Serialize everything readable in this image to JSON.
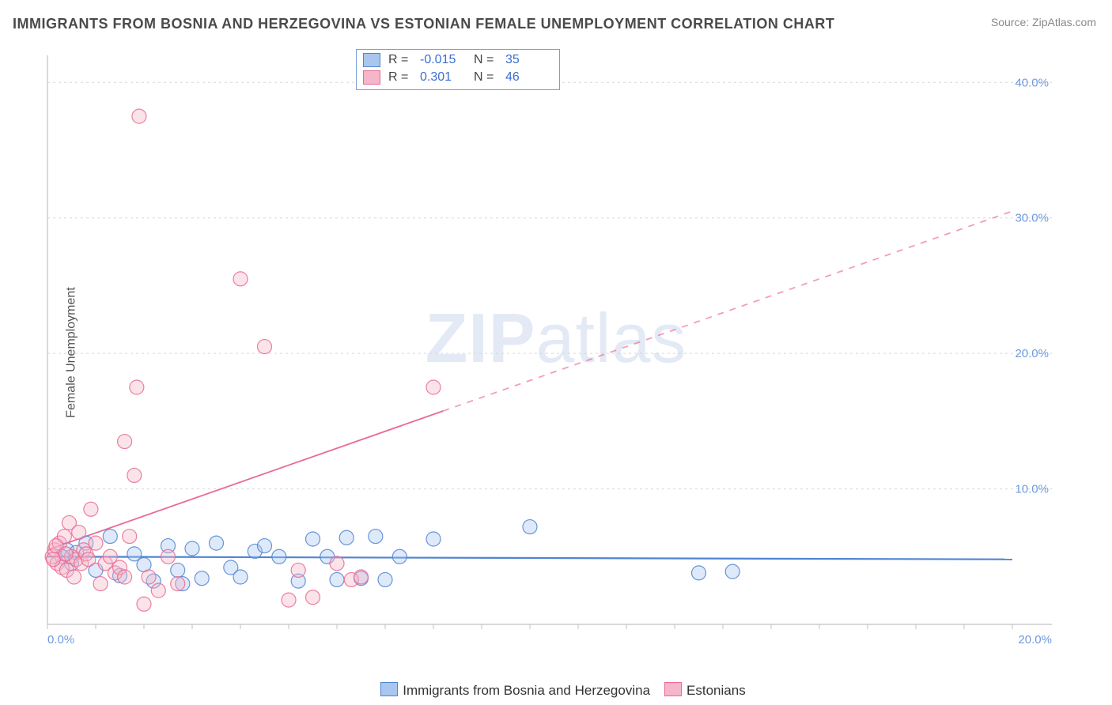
{
  "title": "IMMIGRANTS FROM BOSNIA AND HERZEGOVINA VS ESTONIAN FEMALE UNEMPLOYMENT CORRELATION CHART",
  "source": "Source: ZipAtlas.com",
  "ylabel": "Female Unemployment",
  "watermark_bold": "ZIP",
  "watermark_rest": "atlas",
  "chart": {
    "type": "scatter",
    "xlim": [
      0,
      20
    ],
    "ylim": [
      0,
      42
    ],
    "x_ticks": [
      0,
      20
    ],
    "x_tick_labels": [
      "0.0%",
      "20.0%"
    ],
    "y_ticks": [
      10,
      20,
      30,
      40
    ],
    "y_tick_labels": [
      "10.0%",
      "20.0%",
      "30.0%",
      "40.0%"
    ],
    "grid_color": "#d7d7d7",
    "axis_color": "#c2c2c2",
    "tick_label_color": "#6e9ae0",
    "tick_label_fontsize": 15,
    "marker_radius": 9,
    "marker_opacity": 0.38,
    "marker_stroke_opacity": 0.85,
    "series": [
      {
        "name": "Immigrants from Bosnia and Herzegovina",
        "color_fill": "#a9c6ee",
        "color_stroke": "#4f84d3",
        "R": "-0.015",
        "N": "35",
        "trend": {
          "y_at_x0": 5.0,
          "y_at_x20": 4.8,
          "dash": false,
          "width": 2.2
        },
        "points": [
          [
            0.4,
            5.5
          ],
          [
            0.5,
            4.5
          ],
          [
            0.8,
            6.0
          ],
          [
            1.0,
            4.0
          ],
          [
            1.3,
            6.5
          ],
          [
            1.5,
            3.6
          ],
          [
            1.8,
            5.2
          ],
          [
            2.0,
            4.4
          ],
          [
            2.2,
            3.2
          ],
          [
            2.5,
            5.8
          ],
          [
            2.7,
            4.0
          ],
          [
            2.8,
            3.0
          ],
          [
            3.0,
            5.6
          ],
          [
            3.2,
            3.4
          ],
          [
            3.5,
            6.0
          ],
          [
            3.8,
            4.2
          ],
          [
            4.0,
            3.5
          ],
          [
            4.3,
            5.4
          ],
          [
            4.5,
            5.8
          ],
          [
            4.8,
            5.0
          ],
          [
            5.2,
            3.2
          ],
          [
            5.5,
            6.3
          ],
          [
            5.8,
            5.0
          ],
          [
            6.0,
            3.3
          ],
          [
            6.2,
            6.4
          ],
          [
            6.5,
            3.4
          ],
          [
            6.8,
            6.5
          ],
          [
            7.0,
            3.3
          ],
          [
            7.3,
            5.0
          ],
          [
            8.0,
            6.3
          ],
          [
            10.0,
            7.2
          ],
          [
            13.5,
            3.8
          ],
          [
            14.2,
            3.9
          ],
          [
            0.3,
            5.0
          ],
          [
            0.6,
            5.3
          ]
        ]
      },
      {
        "name": "Estonians",
        "color_fill": "#f4b6c8",
        "color_stroke": "#e96a92",
        "R": "0.301",
        "N": "46",
        "trend": {
          "y_at_x0": 5.5,
          "y_at_x20": 30.5,
          "dash_from_x": 8.2,
          "dash": true,
          "width": 1.8
        },
        "points": [
          [
            0.1,
            5.0
          ],
          [
            0.15,
            5.5
          ],
          [
            0.2,
            4.5
          ],
          [
            0.25,
            6.0
          ],
          [
            0.3,
            4.2
          ],
          [
            0.35,
            6.5
          ],
          [
            0.4,
            4.0
          ],
          [
            0.45,
            7.5
          ],
          [
            0.5,
            5.0
          ],
          [
            0.55,
            3.5
          ],
          [
            0.6,
            4.8
          ],
          [
            0.65,
            6.8
          ],
          [
            0.7,
            4.5
          ],
          [
            0.75,
            5.5
          ],
          [
            0.8,
            5.2
          ],
          [
            0.85,
            4.8
          ],
          [
            0.9,
            8.5
          ],
          [
            1.0,
            6.0
          ],
          [
            1.1,
            3.0
          ],
          [
            1.2,
            4.5
          ],
          [
            1.3,
            5.0
          ],
          [
            1.4,
            3.8
          ],
          [
            1.5,
            4.2
          ],
          [
            1.6,
            3.5
          ],
          [
            1.7,
            6.5
          ],
          [
            1.8,
            11.0
          ],
          [
            1.85,
            17.5
          ],
          [
            1.9,
            37.5
          ],
          [
            2.0,
            1.5
          ],
          [
            2.1,
            3.5
          ],
          [
            2.3,
            2.5
          ],
          [
            2.5,
            5.0
          ],
          [
            2.7,
            3.0
          ],
          [
            1.6,
            13.5
          ],
          [
            4.0,
            25.5
          ],
          [
            4.5,
            20.5
          ],
          [
            5.0,
            1.8
          ],
          [
            5.2,
            4.0
          ],
          [
            5.5,
            2.0
          ],
          [
            6.0,
            4.5
          ],
          [
            6.3,
            3.3
          ],
          [
            6.5,
            3.5
          ],
          [
            8.0,
            17.5
          ],
          [
            0.12,
            4.8
          ],
          [
            0.18,
            5.8
          ],
          [
            0.38,
            5.2
          ]
        ]
      }
    ],
    "legend_bottom": [
      {
        "label": "Immigrants from Bosnia and Herzegovina",
        "fill": "#a9c6ee",
        "stroke": "#4f84d3"
      },
      {
        "label": "Estonians",
        "fill": "#f4b6c8",
        "stroke": "#e96a92"
      }
    ]
  }
}
